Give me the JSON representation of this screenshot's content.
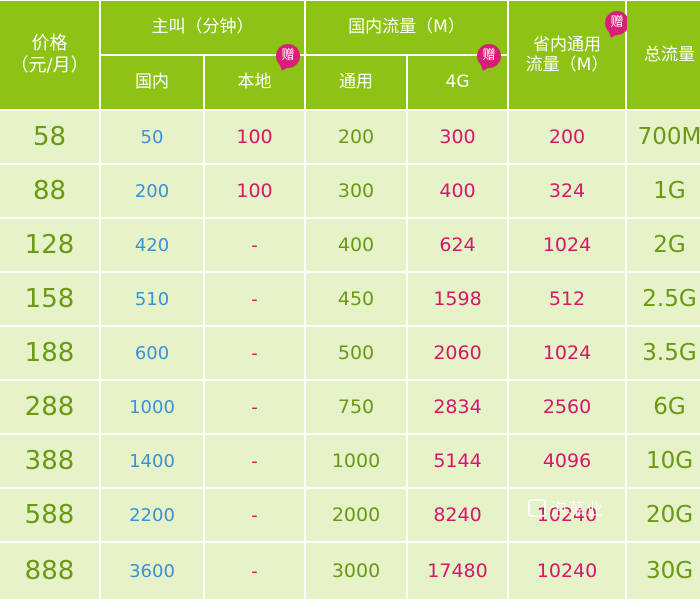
{
  "header": {
    "price": "价格\n（元/月）",
    "calls": "主叫（分钟）",
    "calls_domestic": "国内",
    "calls_local": "本地",
    "national_data": "国内流量（M）",
    "data_general": "通用",
    "data_4g": "4G",
    "provincial_data": "省内通用\n流量（M）",
    "total_data": "总流量",
    "gift_badge": "赠"
  },
  "rows": [
    {
      "price": "58",
      "domestic": "50",
      "local": "100",
      "general": "200",
      "g4": "300",
      "prov": "200",
      "total": "700M"
    },
    {
      "price": "88",
      "domestic": "200",
      "local": "100",
      "general": "300",
      "g4": "400",
      "prov": "324",
      "total": "1G"
    },
    {
      "price": "128",
      "domestic": "420",
      "local": "-",
      "general": "400",
      "g4": "624",
      "prov": "1024",
      "total": "2G"
    },
    {
      "price": "158",
      "domestic": "510",
      "local": "-",
      "general": "450",
      "g4": "1598",
      "prov": "512",
      "total": "2.5G"
    },
    {
      "price": "188",
      "domestic": "600",
      "local": "-",
      "general": "500",
      "g4": "2060",
      "prov": "1024",
      "total": "3.5G"
    },
    {
      "price": "288",
      "domestic": "1000",
      "local": "-",
      "general": "750",
      "g4": "2834",
      "prov": "2560",
      "total": "6G"
    },
    {
      "price": "388",
      "domestic": "1400",
      "local": "-",
      "general": "1000",
      "g4": "5144",
      "prov": "4096",
      "total": "10G"
    },
    {
      "price": "588",
      "domestic": "2200",
      "local": "-",
      "general": "2000",
      "g4": "8240",
      "prov": "10240",
      "total": "20G"
    },
    {
      "price": "888",
      "domestic": "3600",
      "local": "-",
      "general": "3000",
      "g4": "17480",
      "prov": "10240",
      "total": "30G"
    }
  ],
  "watermark": "泡草业",
  "colors": {
    "header_bg": "#8cc314",
    "cell_bg": "#e6f2c8",
    "green_text": "#6b9a12",
    "blue_text": "#3a92d8",
    "pink_text": "#d4186c",
    "badge": "#d81e78"
  }
}
